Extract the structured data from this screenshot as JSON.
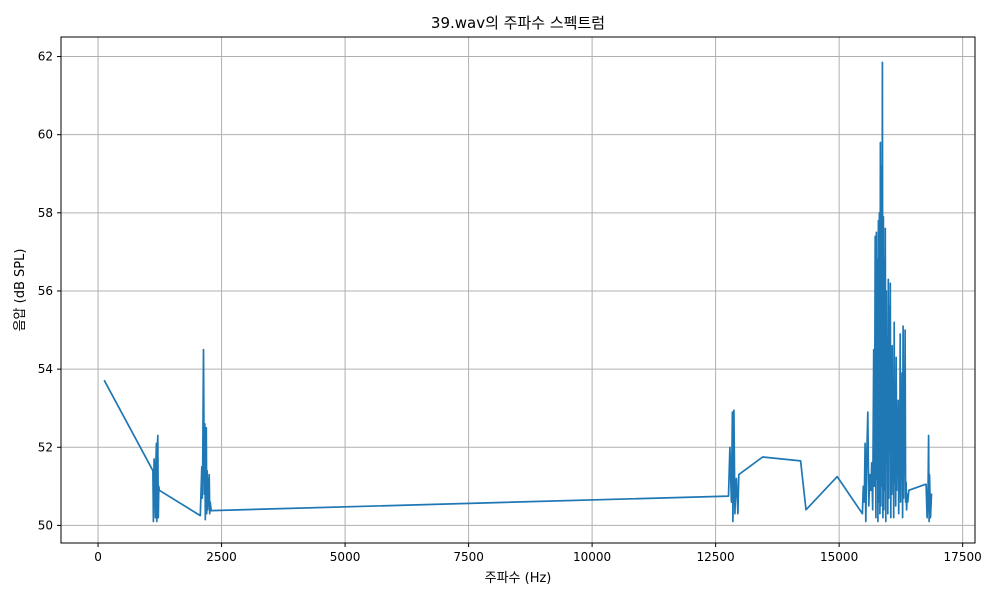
{
  "chart_data": {
    "type": "line",
    "title": "39.wav의 주파수 스펙트럼",
    "xlabel": "주파수 (Hz)",
    "ylabel": "음압 (dB SPL)",
    "xlim": [
      -750,
      17750
    ],
    "ylim": [
      49.55,
      62.5
    ],
    "xticks": [
      0,
      2500,
      5000,
      7500,
      10000,
      12500,
      15000,
      17500
    ],
    "yticks": [
      50,
      52,
      54,
      56,
      58,
      60,
      62
    ],
    "grid": true,
    "legend": "none",
    "series": [
      {
        "color": "#1f77b4",
        "x": [
          130,
          1110,
          1120,
          1135,
          1150,
          1160,
          1170,
          1180,
          1190,
          1200,
          1210,
          1220,
          1230,
          1240,
          2070,
          2100,
          2110,
          2120,
          2135,
          2150,
          2160,
          2170,
          2180,
          2190,
          2200,
          2210,
          2220,
          2230,
          2240,
          2250,
          2260,
          2270,
          2290,
          12760,
          12790,
          12820,
          12840,
          12850,
          12870,
          12890,
          12900,
          12920,
          12950,
          12970,
          13450,
          14220,
          14330,
          14960,
          15470,
          15490,
          15510,
          15525,
          15540,
          15560,
          15580,
          15600,
          15620,
          15640,
          15660,
          15680,
          15700,
          15715,
          15730,
          15745,
          15755,
          15765,
          15775,
          15785,
          15795,
          15805,
          15815,
          15825,
          15835,
          15845,
          15855,
          15865,
          15875,
          15885,
          15895,
          15905,
          15915,
          15925,
          15935,
          15945,
          15955,
          15965,
          15975,
          15985,
          15995,
          16005,
          16015,
          16025,
          16035,
          16045,
          16055,
          16065,
          16075,
          16085,
          16095,
          16105,
          16115,
          16125,
          16135,
          16145,
          16155,
          16165,
          16175,
          16185,
          16195,
          16205,
          16215,
          16225,
          16235,
          16245,
          16255,
          16265,
          16275,
          16285,
          16295,
          16305,
          16315,
          16325,
          16335,
          16345,
          16355,
          16365,
          16375,
          16390,
          16410,
          16740,
          16760,
          16780,
          16800,
          16810,
          16820,
          16830,
          16850,
          16870
        ],
        "y": [
          53.7,
          51.4,
          50.1,
          51.7,
          51.2,
          50.2,
          51.6,
          52.1,
          50.1,
          51.9,
          52.3,
          50.2,
          51.0,
          50.9,
          50.25,
          51.5,
          50.7,
          51.8,
          54.5,
          50.8,
          52.6,
          50.15,
          51.6,
          52.5,
          50.3,
          51.4,
          50.4,
          51.2,
          50.5,
          51.3,
          50.3,
          50.6,
          50.38,
          50.75,
          52.0,
          50.6,
          52.9,
          50.1,
          52.95,
          50.3,
          50.7,
          51.2,
          50.3,
          51.3,
          51.75,
          51.65,
          50.4,
          51.25,
          50.3,
          51.0,
          50.6,
          52.1,
          50.1,
          51.8,
          52.9,
          50.5,
          51.3,
          50.9,
          51.6,
          50.4,
          54.5,
          51.0,
          57.4,
          50.2,
          57.5,
          51.2,
          56.8,
          50.1,
          57.8,
          50.6,
          58.0,
          50.3,
          59.8,
          50.5,
          59.2,
          51.0,
          61.85,
          50.2,
          57.9,
          50.4,
          56.8,
          50.9,
          57.6,
          50.1,
          56.0,
          51.6,
          54.8,
          50.3,
          56.3,
          50.7,
          55.6,
          51.9,
          56.2,
          50.2,
          53.9,
          50.8,
          54.6,
          51.5,
          53.6,
          50.2,
          55.2,
          51.1,
          53.4,
          50.5,
          54.3,
          50.9,
          52.8,
          51.7,
          53.2,
          50.3,
          52.1,
          51.4,
          54.9,
          50.6,
          52.7,
          51.2,
          53.9,
          50.2,
          55.1,
          50.7,
          52.3,
          51.5,
          55.0,
          50.6,
          51.1,
          50.4,
          50.8,
          50.6,
          50.9,
          51.05,
          51.05,
          50.2,
          51.0,
          52.3,
          50.1,
          51.3,
          50.2,
          50.8
        ]
      }
    ]
  }
}
